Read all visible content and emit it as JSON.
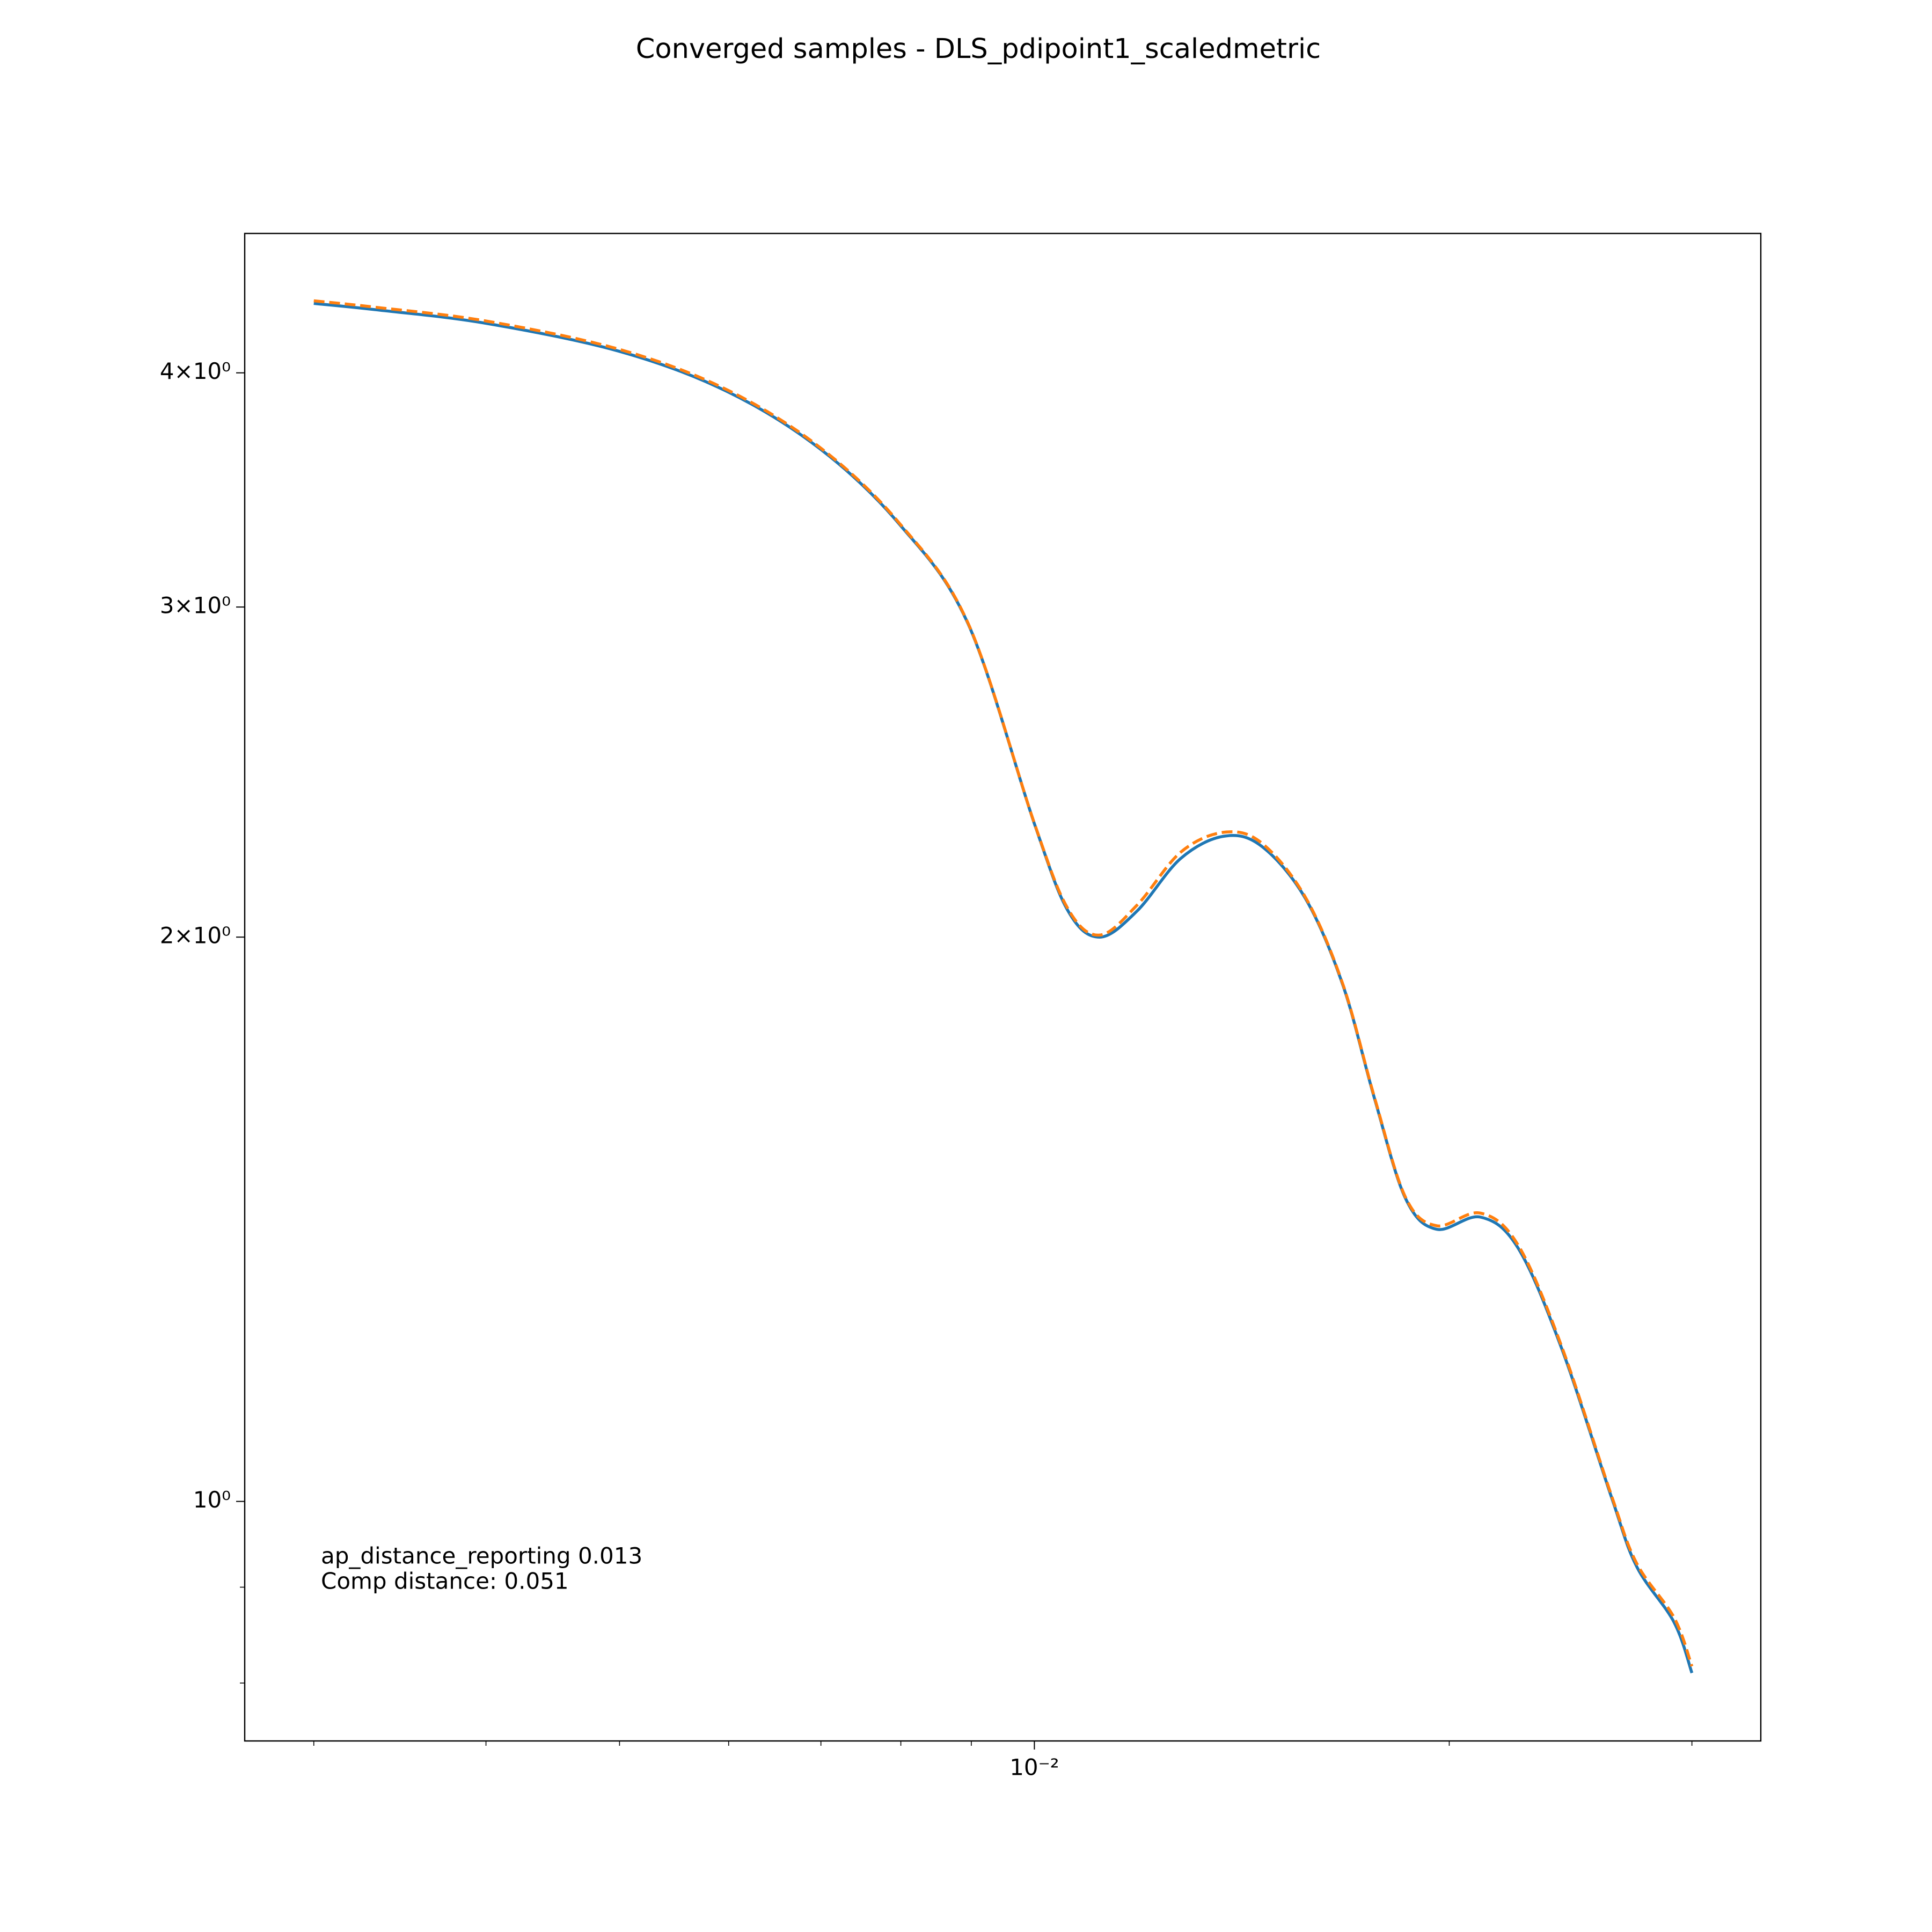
{
  "chart_data": {
    "type": "line",
    "title": "Converged samples - DLS_pdipoint1_scaledmetric",
    "annotations": [
      "ap_distance_reporting 0.013",
      "Comp distance: 0.051"
    ],
    "xscale": "log",
    "yscale": "log",
    "grid": false,
    "xlim": [
      0.002673,
      0.03366
    ],
    "ylim": [
      0.7451,
      4.747
    ],
    "xticks": [
      {
        "value": 0.01,
        "label": "10⁻²"
      }
    ],
    "xminor_ticks": [
      0.003,
      0.004,
      0.005,
      0.006,
      0.007,
      0.008,
      0.009,
      0.02,
      0.03
    ],
    "yticks": [
      {
        "value": 1,
        "label": "10⁰"
      },
      {
        "value": 2,
        "label": "2×10⁰"
      },
      {
        "value": 3,
        "label": "3×10⁰"
      },
      {
        "value": 4,
        "label": "4×10⁰"
      }
    ],
    "yminor_ticks": [
      0.8,
      0.9
    ],
    "x": [
      0.003,
      0.003322,
      0.004007,
      0.005011,
      0.005995,
      0.006998,
      0.007982,
      0.008953,
      0.01,
      0.01058,
      0.01115,
      0.01187,
      0.01277,
      0.01373,
      0.01462,
      0.01573,
      0.01675,
      0.01765,
      0.01859,
      0.01958,
      0.02107,
      0.02244,
      0.02413,
      0.02623,
      0.02735,
      0.02912,
      0.03
    ],
    "series": [
      {
        "color": "#1f77b4",
        "dash": "solid",
        "values": [
          4.356,
          4.323,
          4.25,
          4.105,
          3.907,
          3.641,
          3.321,
          2.938,
          2.299,
          2.065,
          2.0,
          2.065,
          2.203,
          2.264,
          2.236,
          2.097,
          1.884,
          1.641,
          1.451,
          1.397,
          1.418,
          1.365,
          1.207,
          1.005,
          0.9234,
          0.862,
          0.81
        ]
      },
      {
        "color": "#ff7f0e",
        "dash": "dashed",
        "values": [
          4.37,
          4.336,
          4.262,
          4.115,
          3.915,
          3.647,
          3.325,
          2.94,
          2.3,
          2.07,
          2.005,
          2.08,
          2.22,
          2.275,
          2.245,
          2.1,
          1.886,
          1.643,
          1.453,
          1.403,
          1.425,
          1.37,
          1.21,
          1.007,
          0.927,
          0.867,
          0.8167
        ]
      }
    ]
  }
}
